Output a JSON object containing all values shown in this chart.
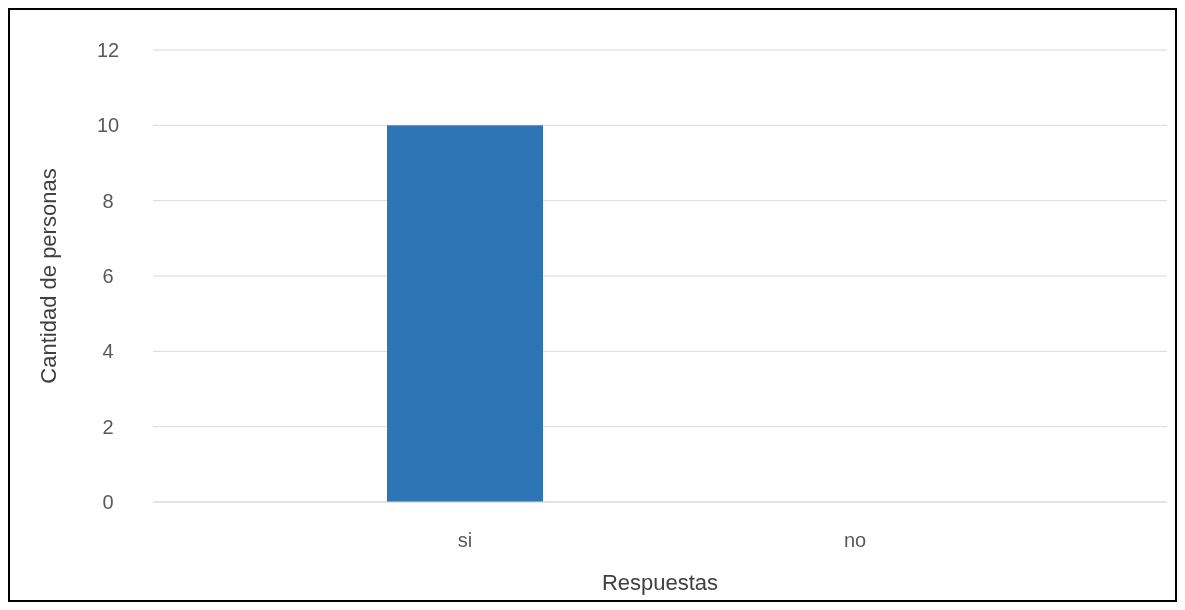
{
  "chart_data": {
    "type": "bar",
    "xlabel": "Respuestas",
    "ylabel": "Cantidad de personas",
    "categories": [
      "si",
      "no"
    ],
    "values": [
      10,
      0
    ],
    "color": "#2e75b6",
    "ylim": [
      0,
      12
    ],
    "yticks": [
      0,
      2,
      4,
      6,
      8,
      10,
      12
    ],
    "grid": "y"
  }
}
